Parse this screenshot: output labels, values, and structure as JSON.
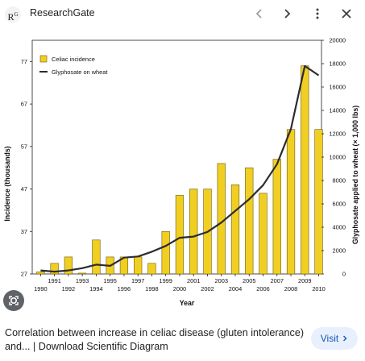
{
  "header": {
    "site_logo_text": "R",
    "site_logo_superscript": "G",
    "site_name": "ResearchGate",
    "icons": [
      "chevron-left-icon",
      "chevron-right-icon",
      "more-vert-icon",
      "close-icon"
    ]
  },
  "caption": {
    "text": "Correlation between increase in celiac disease (gluten intolerance) and... | Download Scientific Diagram"
  },
  "visit": {
    "label": "Visit"
  },
  "colors": {
    "bar_fill": "#f1cf22",
    "bar_stroke": "#6b5a10",
    "line": "#2c2c2c",
    "visit_bg": "#e8f0fe",
    "visit_text": "#1a56b0"
  },
  "chart_data": {
    "type": "bar",
    "title": "",
    "xlabel": "Year",
    "ylabel": "Incidence (thousands)",
    "y2label": "Glyphosate applied to wheat (× 1,000 lbs)",
    "ylim": [
      27,
      82
    ],
    "y2lim": [
      0,
      20000
    ],
    "yticks": [
      27,
      37,
      47,
      57,
      67,
      77
    ],
    "y2ticks": [
      0,
      2000,
      4000,
      6000,
      8000,
      10000,
      12000,
      14000,
      16000,
      18000,
      20000
    ],
    "x_tick_labels_lower": [
      "1990",
      "1992",
      "1994",
      "1996",
      "1998",
      "2000",
      "2002",
      "2004",
      "2006",
      "2008",
      "2010"
    ],
    "x_tick_labels_upper": [
      "1991",
      "1993",
      "1995",
      "1997",
      "1999",
      "2001",
      "2003",
      "2005",
      "2007",
      "2009"
    ],
    "categories": [
      "1990",
      "1991",
      "1992",
      "1993",
      "1994",
      "1995",
      "1996",
      "1997",
      "1998",
      "1999",
      "2000",
      "2001",
      "2002",
      "2003",
      "2004",
      "2005",
      "2006",
      "2007",
      "2008",
      "2009",
      "2010"
    ],
    "legend_position": "top-left",
    "grid": false,
    "series": [
      {
        "name": "Celiac incidence",
        "kind": "bar",
        "axis": "left",
        "values": [
          27.5,
          29.5,
          31,
          27.2,
          35,
          31,
          31,
          31,
          29.5,
          37,
          45.5,
          47,
          47,
          53,
          48,
          52,
          46,
          54,
          61,
          76,
          61
        ]
      },
      {
        "name": "Glyphosate on wheat",
        "kind": "line",
        "axis": "right",
        "values": [
          300,
          200,
          300,
          500,
          800,
          700,
          1400,
          1500,
          1900,
          2400,
          3100,
          3200,
          3600,
          4400,
          5400,
          6400,
          7600,
          9400,
          12400,
          17800,
          17000
        ]
      }
    ]
  }
}
